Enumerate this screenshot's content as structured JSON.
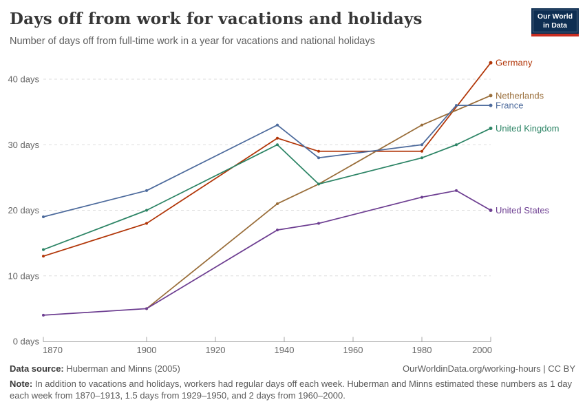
{
  "header": {
    "title": "Days off from work for vacations and holidays",
    "subtitle": "Number of days off from full-time work in a year for vacations and national holidays",
    "logo": {
      "line1": "Our World",
      "line2": "in Data",
      "navy": "#0e2e52",
      "red": "#c92d21"
    }
  },
  "chart_data": {
    "type": "line",
    "title": "Days off from work for vacations and holidays",
    "subtitle": "Number of days off from full-time work in a year for vacations and national holidays",
    "xlabel": "",
    "ylabel": "days",
    "xlim": [
      1870,
      2000
    ],
    "ylim": [
      0,
      43
    ],
    "grid": "horizontal dashed",
    "legend_position": "labels at right end of lines",
    "x_ticks": [
      1870,
      1900,
      1920,
      1940,
      1960,
      1980,
      2000
    ],
    "y_ticks": [
      {
        "value": 0,
        "label": "0 days"
      },
      {
        "value": 10,
        "label": "10 days"
      },
      {
        "value": 20,
        "label": "20 days"
      },
      {
        "value": 30,
        "label": "30 days"
      },
      {
        "value": 40,
        "label": "40 days"
      }
    ],
    "series": [
      {
        "name": "Germany",
        "color": "#B13507",
        "points": [
          [
            1870,
            13
          ],
          [
            1900,
            18
          ],
          [
            1938,
            31
          ],
          [
            1950,
            29
          ],
          [
            1980,
            29
          ],
          [
            2000,
            42.5
          ]
        ]
      },
      {
        "name": "Netherlands",
        "color": "#996D39",
        "points": [
          [
            1900,
            5
          ],
          [
            1938,
            21
          ],
          [
            1950,
            24
          ],
          [
            1980,
            33
          ],
          [
            2000,
            37.5
          ]
        ]
      },
      {
        "name": "France",
        "color": "#4C6A9C",
        "points": [
          [
            1870,
            19
          ],
          [
            1900,
            23
          ],
          [
            1938,
            33
          ],
          [
            1950,
            28
          ],
          [
            1980,
            30
          ],
          [
            1990,
            36
          ],
          [
            2000,
            36
          ]
        ]
      },
      {
        "name": "United Kingdom",
        "color": "#2C8465",
        "points": [
          [
            1870,
            14
          ],
          [
            1900,
            20
          ],
          [
            1938,
            30
          ],
          [
            1950,
            24
          ],
          [
            1980,
            28
          ],
          [
            1990,
            30
          ],
          [
            2000,
            32.5
          ]
        ]
      },
      {
        "name": "United States",
        "color": "#6D3E91",
        "points": [
          [
            1870,
            4
          ],
          [
            1900,
            5
          ],
          [
            1938,
            17
          ],
          [
            1950,
            18
          ],
          [
            1980,
            22
          ],
          [
            1990,
            23
          ],
          [
            2000,
            20
          ]
        ]
      }
    ]
  },
  "footer": {
    "source_label": "Data source:",
    "source_text": "Huberman and Minns (2005)",
    "rights": "OurWorldinData.org/working-hours | CC BY",
    "note_label": "Note:",
    "note_text": "In addition to vacations and holidays, workers had regular days off each week. Huberman and Minns estimated these numbers as 1 day each week from 1870–1913, 1.5 days from 1929–1950, and 2 days from 1960–2000."
  }
}
